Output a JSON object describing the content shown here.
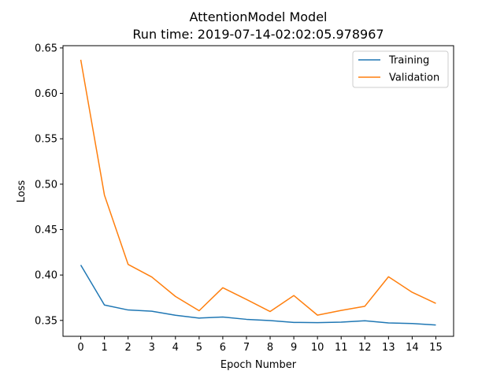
{
  "chart_data": {
    "type": "line",
    "title": "AttentionModel Model",
    "subtitle": "Run time: 2019-07-14-02:02:05.978967",
    "xlabel": "Epoch Number",
    "ylabel": "Loss",
    "x": [
      0,
      1,
      2,
      3,
      4,
      5,
      6,
      7,
      8,
      9,
      10,
      11,
      12,
      13,
      14,
      15
    ],
    "x_ticks": [
      "0",
      "1",
      "2",
      "3",
      "4",
      "5",
      "6",
      "7",
      "8",
      "9",
      "10",
      "11",
      "12",
      "13",
      "14",
      "15"
    ],
    "y_ticks": [
      "0.35",
      "0.40",
      "0.45",
      "0.50",
      "0.55",
      "0.60",
      "0.65"
    ],
    "y_tick_values": [
      0.35,
      0.4,
      0.45,
      0.5,
      0.55,
      0.6,
      0.65
    ],
    "xlim": [
      -0.75,
      15.75
    ],
    "ylim": [
      0.3325,
      0.6525
    ],
    "grid": false,
    "legend_position": "top-right",
    "series": [
      {
        "name": "Training",
        "color": "#1f77b4",
        "values": [
          0.411,
          0.367,
          0.3615,
          0.3601,
          0.3557,
          0.3526,
          0.3537,
          0.3512,
          0.3499,
          0.3478,
          0.3476,
          0.3481,
          0.3496,
          0.3472,
          0.3466,
          0.345
        ]
      },
      {
        "name": "Validation",
        "color": "#ff7f0e",
        "values": [
          0.637,
          0.488,
          0.4117,
          0.3978,
          0.3764,
          0.3607,
          0.386,
          0.3731,
          0.3598,
          0.3774,
          0.3558,
          0.361,
          0.3656,
          0.3981,
          0.381,
          0.3688
        ]
      }
    ]
  }
}
